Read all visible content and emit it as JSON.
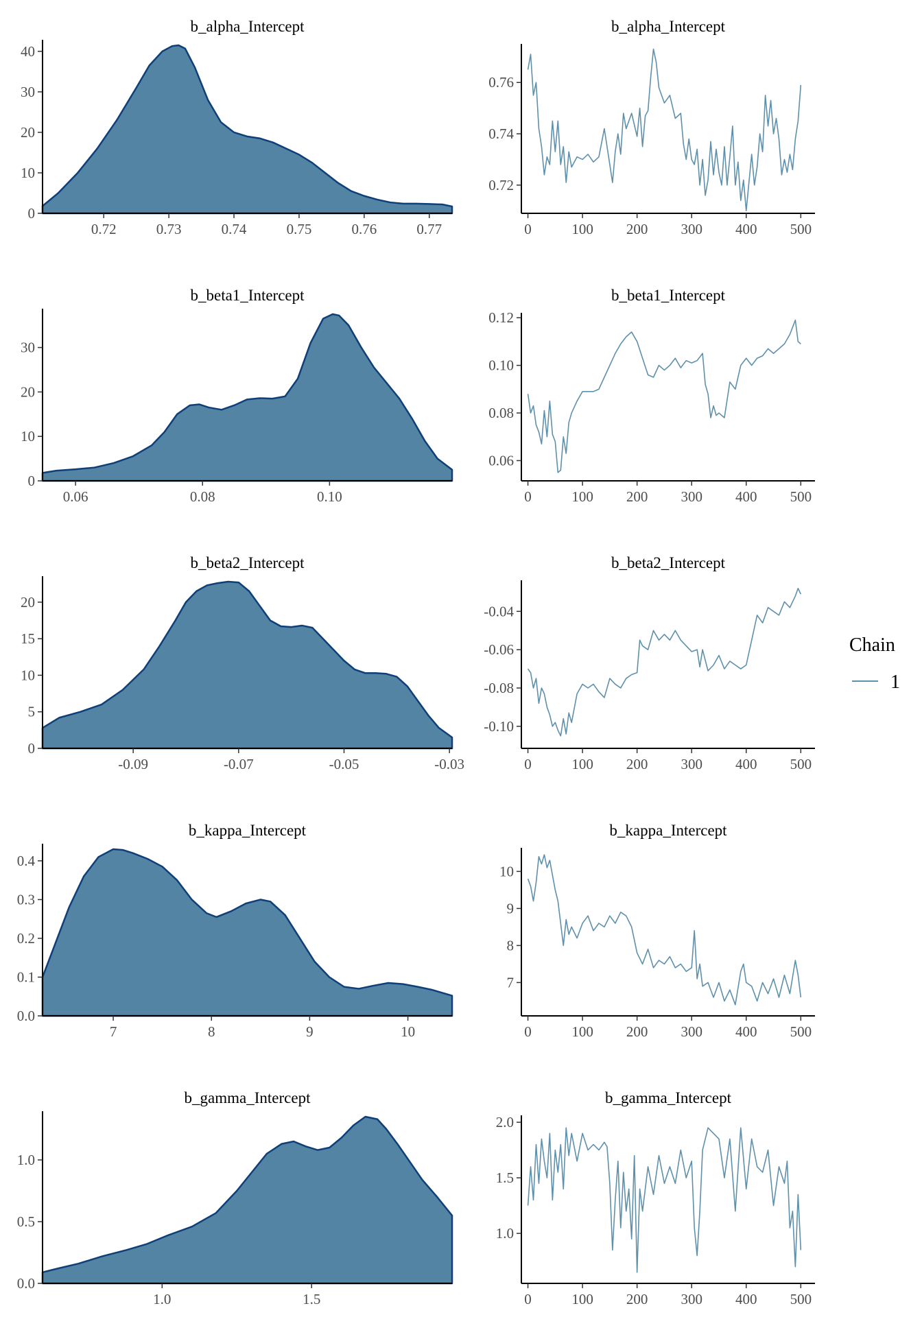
{
  "chart_data": [
    {
      "type": "area",
      "title": "b_alpha_Intercept",
      "xlim": [
        0.7106,
        0.7735
      ],
      "ylim": [
        0,
        41.5
      ],
      "xticks": [
        0.72,
        0.73,
        0.74,
        0.75,
        0.76,
        0.77
      ],
      "xtick_labels": [
        "0.72",
        "0.73",
        "0.74",
        "0.75",
        "0.76",
        "0.77"
      ],
      "yticks": [
        0,
        10,
        20,
        30,
        40
      ],
      "ytick_labels": [
        "0",
        "10",
        "20",
        "30",
        "40"
      ],
      "x": [
        0.7106,
        0.713,
        0.716,
        0.719,
        0.722,
        0.725,
        0.727,
        0.729,
        0.7305,
        0.7315,
        0.7325,
        0.734,
        0.736,
        0.738,
        0.74,
        0.742,
        0.744,
        0.746,
        0.748,
        0.75,
        0.752,
        0.754,
        0.756,
        0.758,
        0.76,
        0.762,
        0.764,
        0.766,
        0.768,
        0.77,
        0.772,
        0.7735
      ],
      "y": [
        1.8,
        5,
        10,
        16,
        23,
        31,
        36.5,
        40,
        41.3,
        41.5,
        40.7,
        36,
        28,
        22.5,
        20,
        19,
        18.5,
        17.5,
        16,
        14.5,
        12.5,
        10,
        7.5,
        5.5,
        4.3,
        3.4,
        2.7,
        2.4,
        2.4,
        2.3,
        2.2,
        1.7
      ]
    },
    {
      "type": "line",
      "title": "b_alpha_Intercept",
      "xlim": [
        -12,
        526
      ],
      "ylim": [
        0.709,
        0.7745
      ],
      "xticks": [
        0,
        100,
        200,
        300,
        400,
        500
      ],
      "xtick_labels": [
        "0",
        "100",
        "200",
        "300",
        "400",
        "500"
      ],
      "yticks": [
        0.72,
        0.74,
        0.76
      ],
      "ytick_labels": [
        "0.72",
        "0.74",
        "0.76"
      ],
      "x": [
        0,
        5,
        10,
        15,
        20,
        25,
        30,
        35,
        40,
        45,
        50,
        55,
        60,
        65,
        70,
        75,
        80,
        90,
        100,
        110,
        120,
        130,
        140,
        150,
        155,
        160,
        165,
        170,
        175,
        180,
        190,
        200,
        205,
        210,
        215,
        220,
        225,
        230,
        235,
        240,
        250,
        260,
        270,
        280,
        285,
        290,
        295,
        300,
        305,
        310,
        315,
        320,
        325,
        330,
        335,
        340,
        345,
        350,
        355,
        360,
        365,
        370,
        375,
        380,
        385,
        390,
        395,
        400,
        405,
        410,
        415,
        420,
        425,
        430,
        435,
        440,
        445,
        450,
        455,
        460,
        465,
        470,
        475,
        480,
        485,
        490,
        495,
        500
      ],
      "y": [
        0.765,
        0.771,
        0.755,
        0.76,
        0.742,
        0.735,
        0.724,
        0.731,
        0.728,
        0.745,
        0.733,
        0.745,
        0.728,
        0.735,
        0.721,
        0.733,
        0.727,
        0.731,
        0.73,
        0.732,
        0.729,
        0.731,
        0.742,
        0.728,
        0.721,
        0.733,
        0.74,
        0.732,
        0.748,
        0.742,
        0.748,
        0.739,
        0.75,
        0.735,
        0.747,
        0.749,
        0.762,
        0.773,
        0.768,
        0.758,
        0.752,
        0.755,
        0.746,
        0.748,
        0.736,
        0.73,
        0.738,
        0.73,
        0.728,
        0.734,
        0.72,
        0.73,
        0.716,
        0.722,
        0.737,
        0.724,
        0.734,
        0.725,
        0.72,
        0.735,
        0.72,
        0.731,
        0.743,
        0.72,
        0.729,
        0.714,
        0.722,
        0.71,
        0.721,
        0.732,
        0.72,
        0.727,
        0.74,
        0.733,
        0.755,
        0.743,
        0.753,
        0.74,
        0.746,
        0.738,
        0.724,
        0.73,
        0.725,
        0.732,
        0.726,
        0.738,
        0.745,
        0.759
      ]
    },
    {
      "type": "area",
      "title": "b_beta1_Intercept",
      "xlim": [
        0.0548,
        0.1193
      ],
      "ylim": [
        0,
        37.5
      ],
      "xticks": [
        0.06,
        0.08,
        0.1
      ],
      "xtick_labels": [
        "0.06",
        "0.08",
        "0.10"
      ],
      "yticks": [
        0,
        10,
        20,
        30
      ],
      "ytick_labels": [
        "0",
        "10",
        "20",
        "30"
      ],
      "x": [
        0.0548,
        0.057,
        0.06,
        0.063,
        0.066,
        0.069,
        0.072,
        0.074,
        0.076,
        0.078,
        0.0795,
        0.081,
        0.083,
        0.085,
        0.087,
        0.089,
        0.091,
        0.093,
        0.095,
        0.097,
        0.099,
        0.1005,
        0.1015,
        0.103,
        0.105,
        0.107,
        0.109,
        0.111,
        0.113,
        0.115,
        0.117,
        0.1193
      ],
      "y": [
        1.8,
        2.3,
        2.6,
        3,
        4,
        5.5,
        8,
        11,
        15,
        17,
        17.2,
        16.5,
        16,
        17,
        18.3,
        18.6,
        18.5,
        19,
        23,
        31,
        36.5,
        37.5,
        37.2,
        35,
        30,
        25.5,
        22,
        18.5,
        14,
        9,
        5,
        2.5
      ]
    },
    {
      "type": "line",
      "title": "b_beta1_Intercept",
      "xlim": [
        -12,
        526
      ],
      "ylim": [
        0.0515,
        0.1215
      ],
      "xticks": [
        0,
        100,
        200,
        300,
        400,
        500
      ],
      "xtick_labels": [
        "0",
        "100",
        "200",
        "300",
        "400",
        "500"
      ],
      "yticks": [
        0.06,
        0.08,
        0.1,
        0.12
      ],
      "ytick_labels": [
        "0.06",
        "0.08",
        "0.10",
        "0.12"
      ],
      "x": [
        0,
        5,
        10,
        15,
        20,
        25,
        30,
        35,
        40,
        45,
        50,
        55,
        60,
        65,
        70,
        75,
        80,
        90,
        100,
        110,
        120,
        130,
        140,
        150,
        160,
        170,
        180,
        190,
        200,
        210,
        220,
        230,
        240,
        250,
        260,
        270,
        280,
        290,
        300,
        310,
        320,
        325,
        330,
        335,
        340,
        345,
        350,
        360,
        370,
        380,
        390,
        400,
        410,
        420,
        430,
        440,
        450,
        460,
        470,
        480,
        490,
        495,
        500
      ],
      "y": [
        0.088,
        0.08,
        0.083,
        0.075,
        0.072,
        0.067,
        0.081,
        0.07,
        0.085,
        0.071,
        0.068,
        0.055,
        0.056,
        0.07,
        0.063,
        0.076,
        0.08,
        0.085,
        0.089,
        0.089,
        0.089,
        0.09,
        0.095,
        0.1,
        0.105,
        0.109,
        0.112,
        0.114,
        0.11,
        0.103,
        0.096,
        0.095,
        0.1,
        0.098,
        0.1,
        0.103,
        0.099,
        0.102,
        0.101,
        0.102,
        0.105,
        0.092,
        0.088,
        0.078,
        0.083,
        0.079,
        0.08,
        0.078,
        0.093,
        0.09,
        0.1,
        0.103,
        0.1,
        0.103,
        0.104,
        0.107,
        0.105,
        0.107,
        0.109,
        0.113,
        0.119,
        0.11,
        0.109
      ]
    },
    {
      "type": "area",
      "title": "b_beta2_Intercept",
      "xlim": [
        -0.1072,
        -0.0295
      ],
      "ylim": [
        0,
        22.8
      ],
      "xticks": [
        -0.09,
        -0.07,
        -0.05,
        -0.03
      ],
      "xtick_labels": [
        "-0.09",
        "-0.07",
        "-0.05",
        "-0.03"
      ],
      "yticks": [
        0,
        5,
        10,
        15,
        20
      ],
      "ytick_labels": [
        "0",
        "5",
        "10",
        "15",
        "20"
      ],
      "x": [
        -0.1072,
        -0.104,
        -0.1,
        -0.096,
        -0.092,
        -0.088,
        -0.085,
        -0.082,
        -0.08,
        -0.078,
        -0.076,
        -0.074,
        -0.072,
        -0.07,
        -0.068,
        -0.066,
        -0.064,
        -0.062,
        -0.06,
        -0.058,
        -0.056,
        -0.054,
        -0.052,
        -0.05,
        -0.048,
        -0.046,
        -0.044,
        -0.042,
        -0.04,
        -0.038,
        -0.036,
        -0.034,
        -0.032,
        -0.0295
      ],
      "y": [
        2.8,
        4.2,
        5,
        6,
        8,
        10.8,
        14,
        17.5,
        20,
        21.5,
        22.3,
        22.6,
        22.8,
        22.7,
        21.5,
        19.5,
        17.5,
        16.7,
        16.6,
        16.8,
        16.5,
        15,
        13.5,
        12,
        10.8,
        10.3,
        10.3,
        10.2,
        9.8,
        8.5,
        6.5,
        4.5,
        2.8,
        1.5
      ]
    },
    {
      "type": "line",
      "title": "b_beta2_Intercept",
      "xlim": [
        -12,
        526
      ],
      "ylim": [
        -0.1115,
        -0.0245
      ],
      "xticks": [
        0,
        100,
        200,
        300,
        400,
        500
      ],
      "xtick_labels": [
        "0",
        "100",
        "200",
        "300",
        "400",
        "500"
      ],
      "yticks": [
        -0.1,
        -0.08,
        -0.06,
        -0.04
      ],
      "ytick_labels": [
        "-0.10",
        "-0.08",
        "-0.06",
        "-0.04"
      ],
      "x": [
        0,
        5,
        10,
        15,
        20,
        25,
        30,
        35,
        40,
        45,
        50,
        55,
        60,
        65,
        70,
        75,
        80,
        90,
        100,
        110,
        120,
        130,
        140,
        150,
        160,
        170,
        180,
        190,
        200,
        205,
        210,
        220,
        230,
        240,
        250,
        260,
        270,
        280,
        290,
        300,
        310,
        315,
        320,
        330,
        340,
        350,
        360,
        370,
        380,
        390,
        400,
        410,
        420,
        430,
        440,
        450,
        460,
        470,
        480,
        490,
        495,
        500
      ],
      "y": [
        -0.07,
        -0.072,
        -0.08,
        -0.075,
        -0.088,
        -0.08,
        -0.083,
        -0.09,
        -0.094,
        -0.1,
        -0.098,
        -0.102,
        -0.105,
        -0.096,
        -0.104,
        -0.093,
        -0.098,
        -0.083,
        -0.078,
        -0.08,
        -0.078,
        -0.082,
        -0.085,
        -0.075,
        -0.078,
        -0.08,
        -0.075,
        -0.073,
        -0.072,
        -0.055,
        -0.058,
        -0.06,
        -0.05,
        -0.055,
        -0.052,
        -0.055,
        -0.05,
        -0.055,
        -0.058,
        -0.061,
        -0.06,
        -0.069,
        -0.06,
        -0.071,
        -0.068,
        -0.063,
        -0.07,
        -0.066,
        -0.068,
        -0.07,
        -0.068,
        -0.055,
        -0.042,
        -0.046,
        -0.038,
        -0.04,
        -0.042,
        -0.035,
        -0.038,
        -0.032,
        -0.028,
        -0.031
      ]
    },
    {
      "type": "area",
      "title": "b_kappa_Intercept",
      "xlim": [
        6.28,
        10.45
      ],
      "ylim": [
        0,
        0.43
      ],
      "xticks": [
        7,
        8,
        9,
        10
      ],
      "xtick_labels": [
        "7",
        "8",
        "9",
        "10"
      ],
      "yticks": [
        0,
        0.1,
        0.2,
        0.3,
        0.4
      ],
      "ytick_labels": [
        "0.0",
        "0.1",
        "0.2",
        "0.3",
        "0.4"
      ],
      "x": [
        6.28,
        6.4,
        6.55,
        6.7,
        6.85,
        7.0,
        7.1,
        7.2,
        7.35,
        7.5,
        7.65,
        7.8,
        7.95,
        8.05,
        8.2,
        8.35,
        8.5,
        8.6,
        8.75,
        8.9,
        9.05,
        9.2,
        9.35,
        9.5,
        9.65,
        9.8,
        9.95,
        10.1,
        10.25,
        10.45
      ],
      "y": [
        0.1,
        0.18,
        0.28,
        0.36,
        0.41,
        0.43,
        0.428,
        0.42,
        0.405,
        0.385,
        0.35,
        0.3,
        0.265,
        0.255,
        0.27,
        0.29,
        0.3,
        0.295,
        0.26,
        0.2,
        0.14,
        0.1,
        0.075,
        0.07,
        0.078,
        0.085,
        0.082,
        0.075,
        0.067,
        0.052
      ]
    },
    {
      "type": "line",
      "title": "b_kappa_Intercept",
      "xlim": [
        -12,
        526
      ],
      "ylim": [
        6.1,
        10.6
      ],
      "xticks": [
        0,
        100,
        200,
        300,
        400,
        500
      ],
      "xtick_labels": [
        "0",
        "100",
        "200",
        "300",
        "400",
        "500"
      ],
      "yticks": [
        7,
        8,
        9,
        10
      ],
      "ytick_labels": [
        "7",
        "8",
        "9",
        "10"
      ],
      "x": [
        0,
        5,
        10,
        15,
        20,
        25,
        30,
        35,
        40,
        45,
        50,
        55,
        60,
        65,
        70,
        75,
        80,
        90,
        100,
        110,
        120,
        130,
        140,
        150,
        160,
        170,
        180,
        190,
        200,
        210,
        220,
        230,
        240,
        250,
        260,
        270,
        280,
        290,
        300,
        305,
        310,
        315,
        320,
        330,
        340,
        350,
        360,
        370,
        380,
        390,
        395,
        400,
        410,
        420,
        430,
        440,
        450,
        460,
        470,
        480,
        490,
        495,
        500
      ],
      "y": [
        9.8,
        9.6,
        9.2,
        9.7,
        10.4,
        10.2,
        10.45,
        10.1,
        10.3,
        9.9,
        9.5,
        9.2,
        8.6,
        8.0,
        8.7,
        8.3,
        8.5,
        8.2,
        8.6,
        8.8,
        8.4,
        8.6,
        8.5,
        8.8,
        8.6,
        8.9,
        8.8,
        8.5,
        7.8,
        7.5,
        7.9,
        7.4,
        7.6,
        7.5,
        7.7,
        7.4,
        7.5,
        7.3,
        7.4,
        8.4,
        7.1,
        7.5,
        6.9,
        7.0,
        6.6,
        7.0,
        6.5,
        6.8,
        6.4,
        7.3,
        7.5,
        7.0,
        6.9,
        6.5,
        7.0,
        6.7,
        7.1,
        6.6,
        7.2,
        6.7,
        7.6,
        7.2,
        6.6
      ]
    },
    {
      "type": "area",
      "title": "b_gamma_Intercept",
      "xlim": [
        0.6,
        1.97
      ],
      "ylim": [
        0,
        1.35
      ],
      "xticks": [
        1.0,
        1.5
      ],
      "xtick_labels": [
        "1.0",
        "1.5"
      ],
      "yticks": [
        0,
        0.5,
        1.0
      ],
      "ytick_labels": [
        "0.0",
        "0.5",
        "1.0"
      ],
      "x": [
        0.6,
        0.65,
        0.72,
        0.8,
        0.88,
        0.95,
        1.02,
        1.1,
        1.18,
        1.25,
        1.3,
        1.35,
        1.4,
        1.44,
        1.48,
        1.52,
        1.56,
        1.6,
        1.64,
        1.68,
        1.72,
        1.75,
        1.79,
        1.83,
        1.87,
        1.92,
        1.97
      ],
      "y": [
        0.09,
        0.12,
        0.16,
        0.22,
        0.27,
        0.32,
        0.39,
        0.46,
        0.57,
        0.75,
        0.9,
        1.05,
        1.13,
        1.15,
        1.11,
        1.08,
        1.1,
        1.18,
        1.28,
        1.35,
        1.33,
        1.25,
        1.12,
        0.98,
        0.84,
        0.7,
        0.55
      ]
    },
    {
      "type": "line",
      "title": "b_gamma_Intercept",
      "xlim": [
        -12,
        526
      ],
      "ylim": [
        0.55,
        2.05
      ],
      "xticks": [
        0,
        100,
        200,
        300,
        400,
        500
      ],
      "xtick_labels": [
        "0",
        "100",
        "200",
        "300",
        "400",
        "500"
      ],
      "yticks": [
        1.0,
        1.5,
        2.0
      ],
      "ytick_labels": [
        "1.0",
        "1.5",
        "2.0"
      ],
      "x": [
        0,
        5,
        10,
        15,
        20,
        25,
        30,
        35,
        40,
        45,
        50,
        55,
        60,
        65,
        70,
        75,
        80,
        90,
        100,
        110,
        120,
        130,
        140,
        145,
        150,
        155,
        160,
        165,
        170,
        175,
        180,
        185,
        190,
        195,
        200,
        205,
        210,
        220,
        230,
        240,
        250,
        260,
        270,
        280,
        290,
        300,
        305,
        310,
        315,
        320,
        330,
        340,
        350,
        360,
        370,
        380,
        390,
        400,
        410,
        420,
        430,
        440,
        450,
        460,
        470,
        475,
        480,
        485,
        490,
        495,
        500
      ],
      "y": [
        1.25,
        1.6,
        1.3,
        1.8,
        1.45,
        1.85,
        1.65,
        1.5,
        1.9,
        1.3,
        1.75,
        1.55,
        1.8,
        1.4,
        1.95,
        1.7,
        1.9,
        1.65,
        1.9,
        1.75,
        1.8,
        1.75,
        1.82,
        1.78,
        1.45,
        0.85,
        1.3,
        1.65,
        1.05,
        1.55,
        1.2,
        1.4,
        0.95,
        1.7,
        0.65,
        1.4,
        1.2,
        1.6,
        1.35,
        1.7,
        1.45,
        1.6,
        1.45,
        1.75,
        1.5,
        1.65,
        1.05,
        0.8,
        1.2,
        1.75,
        1.95,
        1.9,
        1.85,
        1.5,
        1.85,
        1.2,
        1.95,
        1.4,
        1.85,
        1.6,
        1.55,
        1.75,
        1.25,
        1.6,
        1.45,
        1.65,
        1.05,
        1.2,
        0.7,
        1.35,
        0.85
      ]
    }
  ],
  "legend": {
    "title": "Chain",
    "label": "1",
    "line_color": "#5f90ab"
  },
  "colors": {
    "density_fill": "#5384a3",
    "density_outline": "#0e3f79",
    "trace": "#5f90ab"
  }
}
